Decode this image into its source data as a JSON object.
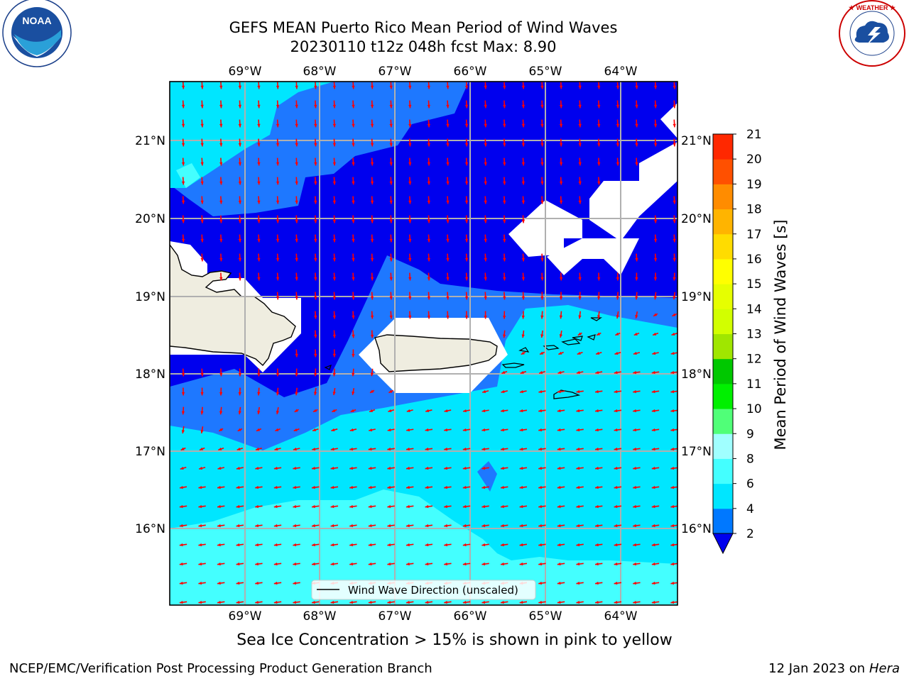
{
  "header": {
    "title": "GEFS MEAN Puerto Rico Mean Period of Wind Waves",
    "subtitle": "20230110 t12z 048h fcst   Max: 8.90"
  },
  "logos": {
    "left": {
      "name": "noaa-logo",
      "text": "NOAA",
      "ring_text": "NATIONAL OCEANIC AND ATMOSPHERIC ADMINISTRATION · U.S. DEPARTMENT OF COMMERCE"
    },
    "right": {
      "name": "nws-logo",
      "ring_text": "NATIONAL WEATHER SERVICE"
    }
  },
  "map": {
    "lon_labels": [
      "69°W",
      "68°W",
      "67°W",
      "66°W",
      "65°W",
      "64°W"
    ],
    "lat_labels": [
      "21°N",
      "20°N",
      "19°N",
      "18°N",
      "17°N",
      "16°N"
    ],
    "legend_label": "Wind Wave Direction (unscaled)",
    "arrow_color": "#ff0000"
  },
  "colorbar": {
    "label": "Mean Period of Wind Waves [s]",
    "ticks": [
      "2",
      "4",
      "6",
      "8",
      "9",
      "10",
      "11",
      "12",
      "13",
      "14",
      "15",
      "16",
      "17",
      "18",
      "19",
      "20",
      "21"
    ],
    "colors": [
      "#0078ff",
      "#00e6ff",
      "#44ffff",
      "#a0ffff",
      "#50ff78",
      "#00f000",
      "#00c800",
      "#a0e600",
      "#d2ff00",
      "#e6ff00",
      "#ffff00",
      "#ffdc00",
      "#ffb400",
      "#ff8c00",
      "#ff5000",
      "#ff2800",
      "#ff0000"
    ],
    "below_color": "#0000ee"
  },
  "map_colors": {
    "lowest": "#0000ee",
    "low": "#1e78ff",
    "mid": "#00e6ff",
    "high": "#44ffff",
    "land": "#efede0",
    "nodata": "#ffffff"
  },
  "footer": {
    "ice_note": "Sea Ice Concentration > 15% is shown in pink to yellow",
    "left": "NCEP/EMC/Verification Post Processing Product Generation Branch",
    "right_date": "12 Jan 2023 on ",
    "right_host": "Hera"
  }
}
